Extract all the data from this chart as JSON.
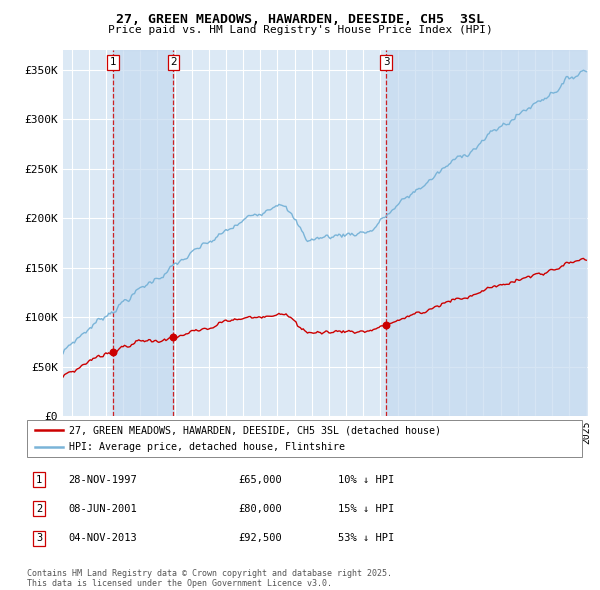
{
  "title_line1": "27, GREEN MEADOWS, HAWARDEN, DEESIDE, CH5  3SL",
  "title_line2": "Price paid vs. HM Land Registry's House Price Index (HPI)",
  "ylim": [
    0,
    370000
  ],
  "yticks": [
    0,
    50000,
    100000,
    150000,
    200000,
    250000,
    300000,
    350000
  ],
  "ytick_labels": [
    "£0",
    "£50K",
    "£100K",
    "£150K",
    "£200K",
    "£250K",
    "£300K",
    "£350K"
  ],
  "background_color": "#ffffff",
  "plot_bg_color": "#dce9f5",
  "grid_color": "#ffffff",
  "legend_line1": "27, GREEN MEADOWS, HAWARDEN, DEESIDE, CH5 3SL (detached house)",
  "legend_line2": "HPI: Average price, detached house, Flintshire",
  "table_entries": [
    {
      "label": "1",
      "date": "28-NOV-1997",
      "price": "£65,000",
      "change": "10% ↓ HPI"
    },
    {
      "label": "2",
      "date": "08-JUN-2001",
      "price": "£80,000",
      "change": "15% ↓ HPI"
    },
    {
      "label": "3",
      "date": "04-NOV-2013",
      "price": "£92,500",
      "change": "53% ↓ HPI"
    }
  ],
  "footer": "Contains HM Land Registry data © Crown copyright and database right 2025.\nThis data is licensed under the Open Government Licence v3.0.",
  "hpi_color": "#7ab4d8",
  "price_color": "#cc0000",
  "marker_color": "#cc0000",
  "shade_color": "#c5daf0",
  "dashed_line_color": "#cc0000",
  "t1": 1997.91,
  "t2": 2001.44,
  "t3": 2013.84,
  "p1": 65000,
  "p2": 80000,
  "p3": 92500
}
